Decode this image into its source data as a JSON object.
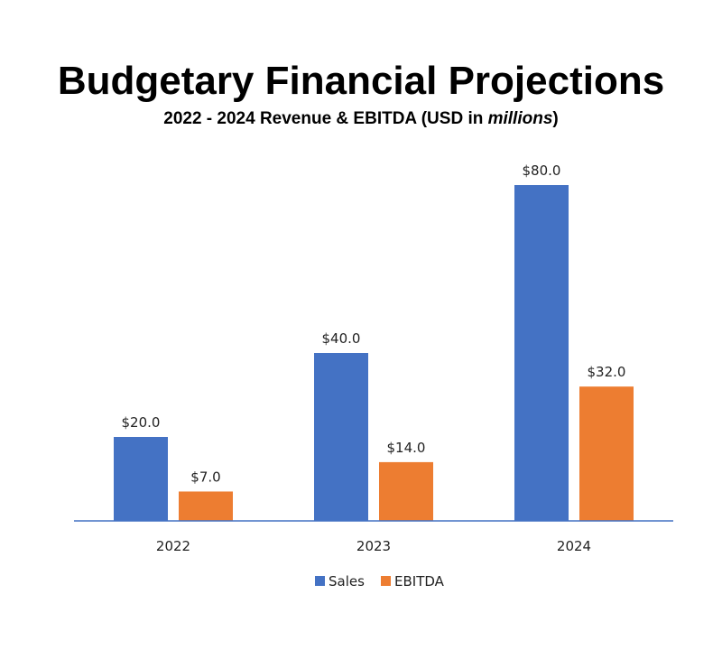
{
  "header": {
    "title": "Budgetary Financial Projections",
    "subtitle_prefix": "2022 - 2024 Revenue & EBITDA (USD in ",
    "subtitle_emph": "millions",
    "subtitle_suffix": ")"
  },
  "colors": {
    "sales": "#4472C4",
    "ebitda": "#ED7D31",
    "axis": "#4472C4"
  },
  "chart_data": {
    "type": "bar",
    "title": "Budgetary Financial Projections",
    "subtitle": "2022 - 2024 Revenue & EBITDA (USD in millions)",
    "categories": [
      "2022",
      "2023",
      "2024"
    ],
    "series": [
      {
        "name": "Sales",
        "values": [
          20.0,
          40.0,
          80.0
        ],
        "labels": [
          "$20.0",
          "$40.0",
          "$80.0"
        ]
      },
      {
        "name": "EBITDA",
        "values": [
          7.0,
          14.0,
          32.0
        ],
        "labels": [
          "$7.0",
          "$14.0",
          "$32.0"
        ]
      }
    ],
    "xlabel": "",
    "ylabel": "",
    "ylim": [
      0,
      80
    ],
    "grid": false,
    "legend_position": "bottom"
  }
}
